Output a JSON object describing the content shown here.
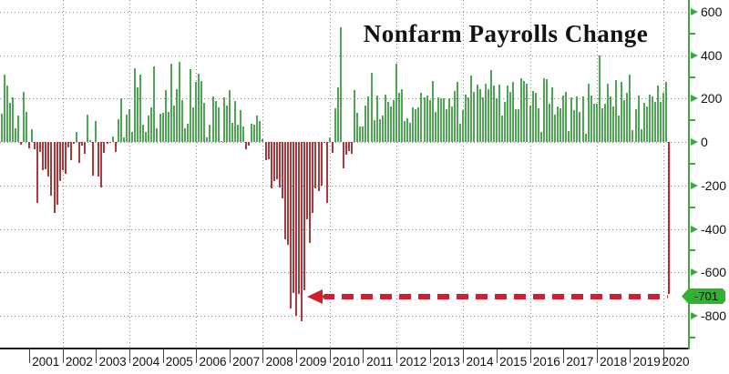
{
  "title": "Nonfarm Payrolls Change",
  "annotation": {
    "tag_label": "-701",
    "tag_color": "#2fb32f",
    "arrow_color": "#d11f2f"
  },
  "colors": {
    "positive_bar": "#3fa244",
    "negative_bar": "#ad2730",
    "last_bar": "#cf1f2e",
    "axis_green": "#44a547",
    "axis_black": "#1a1a1a",
    "grid": "#8a8a8a"
  },
  "x_axis_years": [
    "2001",
    "2002",
    "2003",
    "2004",
    "2005",
    "2006",
    "2007",
    "2008",
    "2009",
    "2010",
    "2011",
    "2012",
    "2013",
    "2014",
    "2015",
    "2016",
    "2017",
    "2018",
    "2019",
    "2020"
  ],
  "chart_data": {
    "type": "bar",
    "title": "Nonfarm Payrolls Change",
    "first_value_month": "2000-03",
    "last_value_month": "2020-03",
    "lead_months_before_2001": 10,
    "ylim": [
      -947,
      654
    ],
    "y_major_ticks": [
      600,
      400,
      200,
      0,
      -200,
      -400,
      -600,
      -800
    ],
    "y_minor_ticks": [
      500,
      300,
      100,
      -100,
      -300,
      -500,
      -900
    ],
    "grid": "dotted, horizontal every 200 and vertical every 2 years",
    "legend": "none",
    "highlight": {
      "month": "2020-03",
      "value": -701,
      "label": "-701"
    },
    "values": [
      130,
      310,
      260,
      180,
      205,
      65,
      120,
      -12,
      230,
      140,
      -30,
      60,
      -35,
      -280,
      -45,
      -130,
      -125,
      -160,
      -245,
      -325,
      -290,
      -180,
      -130,
      -145,
      -25,
      -85,
      -10,
      45,
      -95,
      -15,
      -55,
      125,
      10,
      -155,
      95,
      -160,
      -210,
      -50,
      -10,
      -5,
      25,
      -45,
      105,
      200,
      20,
      125,
      150,
      45,
      340,
      250,
      310,
      80,
      45,
      120,
      160,
      350,
      65,
      130,
      135,
      240,
      140,
      360,
      170,
      245,
      370,
      195,
      65,
      85,
      335,
      160,
      275,
      315,
      280,
      180,
      20,
      80,
      210,
      190,
      160,
      5,
      205,
      170,
      240,
      90,
      190,
      80,
      145,
      70,
      -35,
      -15,
      85,
      80,
      120,
      95,
      15,
      -85,
      -80,
      -215,
      -180,
      -170,
      -210,
      -260,
      -450,
      -475,
      -765,
      -695,
      -800,
      -700,
      -825,
      -685,
      -355,
      -465,
      -325,
      -215,
      -225,
      -200,
      -5,
      -280,
      20,
      -50,
      155,
      250,
      530,
      -120,
      -60,
      -40,
      -55,
      240,
      135,
      70,
      70,
      170,
      210,
      320,
      100,
      215,
      105,
      120,
      220,
      185,
      165,
      195,
      360,
      225,
      245,
      95,
      110,
      90,
      160,
      150,
      160,
      225,
      205,
      215,
      195,
      280,
      140,
      205,
      200,
      200,
      150,
      200,
      165,
      235,
      275,
      85,
      145,
      220,
      205,
      305,
      230,
      265,
      245,
      205,
      270,
      245,
      330,
      260,
      200,
      265,
      120,
      185,
      260,
      230,
      275,
      150,
      150,
      295,
      280,
      270,
      170,
      235,
      225,
      155,
      45,
      295,
      290,
      175,
      250,
      125,
      165,
      155,
      215,
      230,
      50,
      205,
      145,
      210,
      140,
      210,
      40,
      270,
      215,
      175,
      175,
      400,
      155,
      175,
      270,
      210,
      165,
      285,
      120,
      275,
      195,
      225,
      310,
      55,
      150,
      215,
      60,
      180,
      165,
      220,
      210,
      185,
      260,
      185,
      225,
      275,
      -701
    ]
  }
}
